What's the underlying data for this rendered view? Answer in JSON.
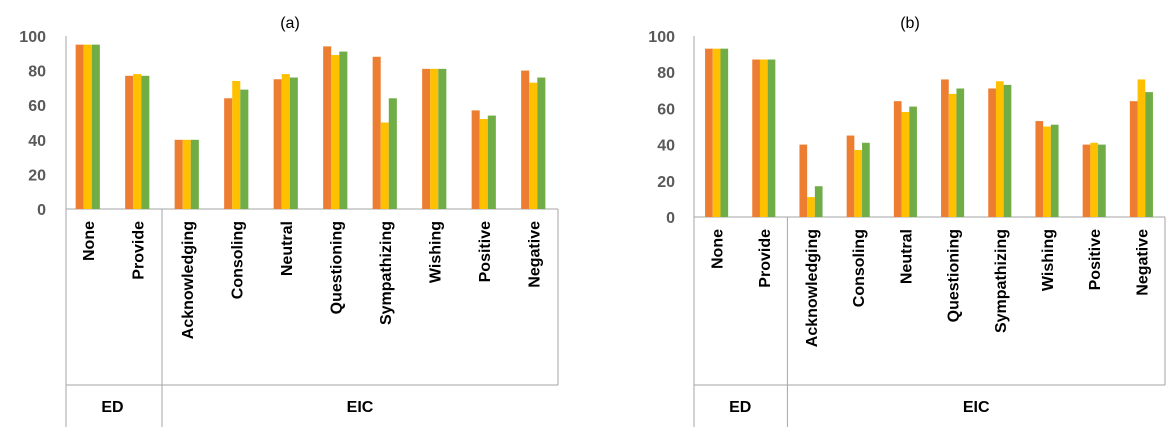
{
  "colors": {
    "s1": "#ed7d31",
    "s2": "#ffc000",
    "s3": "#70ad47",
    "axis": "#a6a6a6"
  },
  "chart_data": [
    {
      "type": "bar",
      "title": "(a)",
      "ylim": [
        0,
        100
      ],
      "yticks": [
        0,
        20,
        40,
        60,
        80,
        100
      ],
      "categories": [
        "None",
        "Provide",
        "Acknowledging",
        "Consoling",
        "Neutral",
        "Questioning",
        "Sympathizing",
        "Wishing",
        "Positive",
        "Negative"
      ],
      "groups": [
        {
          "label": "ED",
          "count": 2
        },
        {
          "label": "EIC",
          "count": 8
        }
      ],
      "series": [
        {
          "values": [
            95,
            77,
            40,
            64,
            75,
            94,
            88,
            81,
            57,
            80
          ]
        },
        {
          "values": [
            95,
            78,
            40,
            74,
            78,
            89,
            50,
            81,
            52,
            73
          ]
        },
        {
          "values": [
            95,
            77,
            40,
            69,
            76,
            91,
            64,
            81,
            54,
            76
          ]
        }
      ]
    },
    {
      "type": "bar",
      "title": "(b)",
      "ylim": [
        0,
        100
      ],
      "yticks": [
        0,
        20,
        40,
        60,
        80,
        100
      ],
      "categories": [
        "None",
        "Provide",
        "Acknowledging",
        "Consoling",
        "Neutral",
        "Questioning",
        "Sympathizing",
        "Wishing",
        "Positive",
        "Negative"
      ],
      "groups": [
        {
          "label": "ED",
          "count": 2
        },
        {
          "label": "EIC",
          "count": 8
        }
      ],
      "series": [
        {
          "values": [
            93,
            87,
            40,
            45,
            64,
            76,
            71,
            53,
            40,
            64
          ]
        },
        {
          "values": [
            93,
            87,
            11,
            37,
            58,
            68,
            75,
            50,
            41,
            76
          ]
        },
        {
          "values": [
            93,
            87,
            17,
            41,
            61,
            71,
            73,
            51,
            40,
            69
          ]
        }
      ]
    }
  ]
}
